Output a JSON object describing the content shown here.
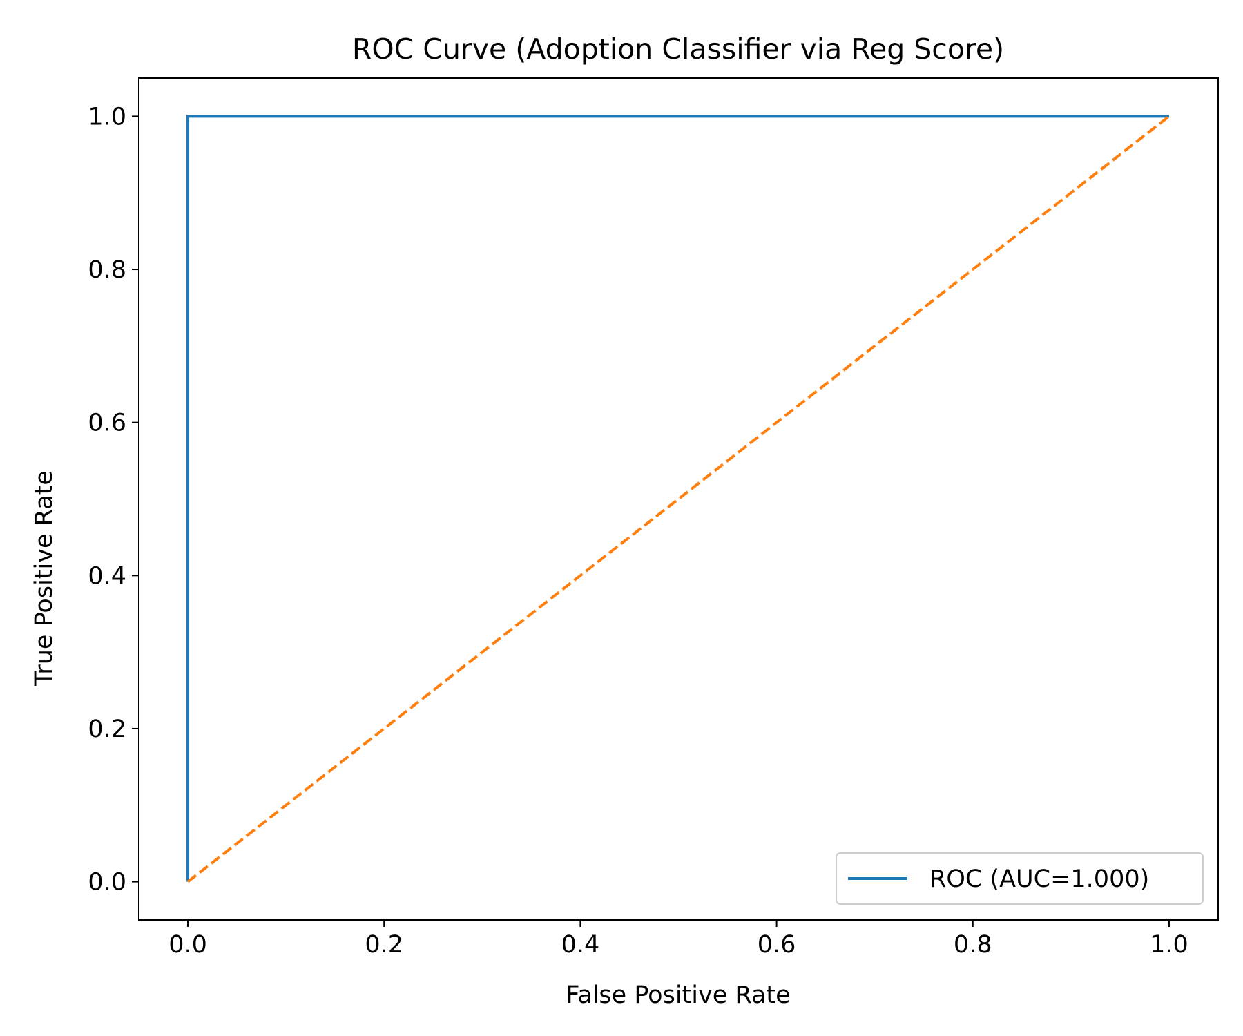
{
  "chart_data": {
    "type": "line",
    "title": "ROC Curve (Adoption Classifier via Reg Score)",
    "xlabel": "False Positive Rate",
    "ylabel": "True Positive Rate",
    "xlim": [
      -0.05,
      1.05
    ],
    "ylim": [
      -0.05,
      1.05
    ],
    "xticks": [
      0.0,
      0.2,
      0.4,
      0.6,
      0.8,
      1.0
    ],
    "yticks": [
      0.0,
      0.2,
      0.4,
      0.6,
      0.8,
      1.0
    ],
    "x_tick_labels": [
      "0.0",
      "0.2",
      "0.4",
      "0.6",
      "0.8",
      "1.0"
    ],
    "y_tick_labels": [
      "0.0",
      "0.2",
      "0.4",
      "0.6",
      "0.8",
      "1.0"
    ],
    "grid": false,
    "legend_position": "lower-right",
    "series": [
      {
        "name": "ROC (AUC=1.000)",
        "color": "#1f77b4",
        "style": "solid",
        "x": [
          0.0,
          0.0,
          1.0
        ],
        "y": [
          0.0,
          1.0,
          1.0
        ]
      },
      {
        "color": "#ff7f0e",
        "style": "dashed",
        "x": [
          0.0,
          1.0
        ],
        "y": [
          0.0,
          1.0
        ]
      }
    ]
  }
}
